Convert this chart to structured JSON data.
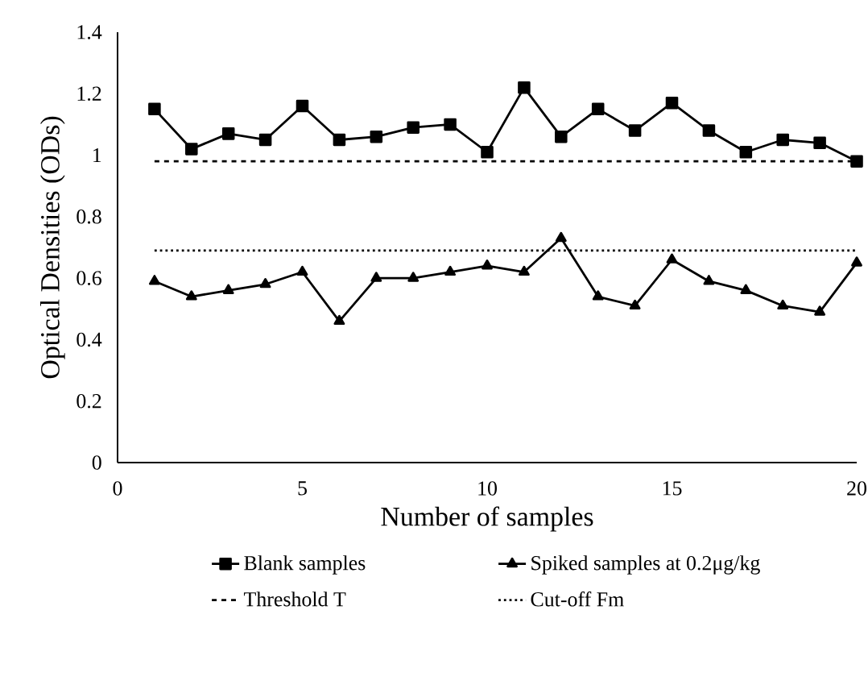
{
  "chart_data": {
    "type": "line",
    "xlabel": "Number of samples",
    "ylabel": "Optical Densities (ODs)",
    "x": [
      1,
      2,
      3,
      4,
      5,
      6,
      7,
      8,
      9,
      10,
      11,
      12,
      13,
      14,
      15,
      16,
      17,
      18,
      19,
      20
    ],
    "series": [
      {
        "name": "Blank samples",
        "color": "#000000",
        "marker": "square",
        "line_style": "solid",
        "values": [
          1.15,
          1.02,
          1.07,
          1.05,
          1.16,
          1.05,
          1.06,
          1.09,
          1.1,
          1.01,
          1.22,
          1.06,
          1.15,
          1.08,
          1.17,
          1.08,
          1.01,
          1.05,
          1.04,
          0.98
        ]
      },
      {
        "name": "Spiked samples at 0.2μg/kg",
        "color": "#000000",
        "marker": "triangle",
        "line_style": "solid",
        "values": [
          0.59,
          0.54,
          0.56,
          0.58,
          0.62,
          0.46,
          0.6,
          0.6,
          0.62,
          0.64,
          0.62,
          0.73,
          0.54,
          0.51,
          0.66,
          0.59,
          0.56,
          0.51,
          0.49,
          0.65
        ]
      }
    ],
    "ref_lines": [
      {
        "axis": "y",
        "value": 0.98,
        "label": "Threshold T",
        "color": "#000000",
        "line_style": "dashed"
      },
      {
        "axis": "y",
        "value": 0.69,
        "label": "Cut-off Fm",
        "color": "#000000",
        "line_style": "dotted"
      }
    ],
    "xlim": [
      0,
      20
    ],
    "xticks": [
      0,
      5,
      10,
      15,
      20
    ],
    "ylim": [
      0,
      1.4
    ],
    "yticks": [
      0,
      0.2,
      0.4,
      0.6,
      0.8,
      1,
      1.2,
      1.4
    ],
    "grid": false,
    "legend": "bottom"
  }
}
